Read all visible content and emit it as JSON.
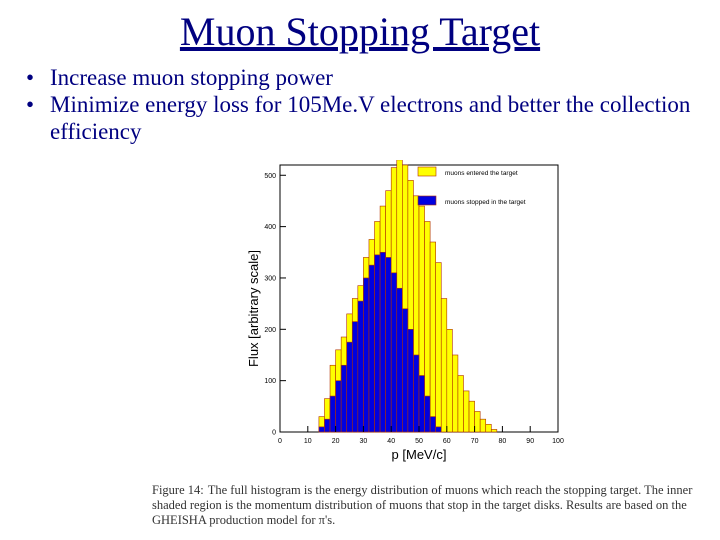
{
  "slide": {
    "title": "Muon Stopping Target",
    "bullets": [
      "Increase muon stopping power",
      "Minimize energy loss for 105Me.V electrons and better the collection efficiency"
    ],
    "bullet_glyph": "•"
  },
  "figure": {
    "caption_label": "Figure 14:",
    "caption_text": "The full histogram is the energy distribution of muons which reach the stopping target. The inner shaded region is the momentum distribution of muons that stop in the target disks. Results are based on the GHEISHA production model for π's."
  },
  "chart_data": {
    "type": "bar",
    "xlabel": "p [MeV/c]",
    "ylabel": "Flux [arbitrary scale]",
    "xlim": [
      0,
      100
    ],
    "ylim": [
      0,
      520
    ],
    "xticks": [
      0,
      10,
      20,
      30,
      40,
      50,
      60,
      70,
      80,
      90,
      100
    ],
    "xtick_labels": [
      "0",
      "10",
      "20",
      "30",
      "40",
      "50",
      "60",
      "70",
      "80",
      "90",
      "100"
    ],
    "yticks": [
      0,
      100,
      200,
      300,
      400,
      500
    ],
    "ytick_labels": [
      "0",
      "100",
      "200",
      "300",
      "400",
      "500"
    ],
    "bin_edges": [
      14,
      16,
      18,
      20,
      22,
      24,
      26,
      28,
      30,
      32,
      34,
      36,
      38,
      40,
      42,
      44,
      46,
      48,
      50,
      52,
      54,
      56,
      58,
      60,
      62,
      64,
      66,
      68,
      70,
      72,
      74,
      76,
      78
    ],
    "legend_position": "top-right",
    "series": [
      {
        "name": "muons entered the target",
        "color": "#ffff00",
        "values": [
          30,
          65,
          130,
          160,
          185,
          230,
          260,
          285,
          340,
          375,
          410,
          440,
          470,
          515,
          530,
          520,
          490,
          460,
          440,
          410,
          370,
          330,
          260,
          200,
          150,
          110,
          80,
          60,
          40,
          25,
          15,
          5
        ]
      },
      {
        "name": "muons stopped in the target",
        "color": "#0000e0",
        "values": [
          10,
          25,
          70,
          100,
          130,
          175,
          215,
          255,
          300,
          325,
          345,
          350,
          340,
          310,
          280,
          240,
          200,
          150,
          110,
          70,
          30,
          10
        ]
      }
    ]
  }
}
